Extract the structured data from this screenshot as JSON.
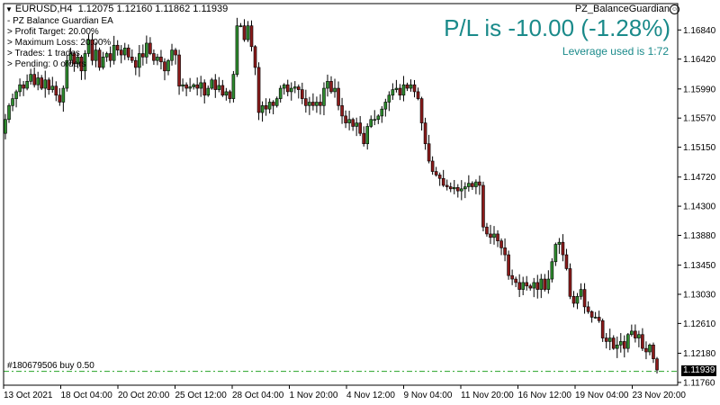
{
  "header": {
    "symbol": "EURUSD,H4",
    "ohlc": "1.12075 1.12160 1.11862 1.11939",
    "ea_name": "PZ_BalanceGuardian"
  },
  "ea_info": [
    "- PZ Balance Guardian EA",
    "> Profit Target: 20.00%",
    "> Maximum Loss: 20.00%",
    "> Trades: 1 trades",
    "> Pending: 0 orders"
  ],
  "pl_text": "P/L is -10.00 (-1.28%)",
  "leverage_text": "Leverage used is 1:72",
  "order": {
    "label": "#180679506 buy 0.50",
    "price": 1.1192
  },
  "current_price": "1.11939",
  "colors": {
    "bull": "#2e8b2e",
    "bear": "#8b1a1a",
    "wick": "#000000",
    "accent": "#1a8a8a",
    "order_line": "#28a428"
  },
  "chart_data": {
    "type": "candlestick",
    "y_ticks": [
      "1.16840",
      "1.16420",
      "1.15990",
      "1.15570",
      "1.15150",
      "1.14720",
      "1.14300",
      "1.13880",
      "1.13450",
      "1.13030",
      "1.12610",
      "1.12180",
      "1.11760"
    ],
    "x_ticks": [
      "13 Oct 2021",
      "18 Oct 04:00",
      "20 Oct 20:00",
      "25 Oct 12:00",
      "28 Oct 04:00",
      "1 Nov 20:00",
      "4 Nov 12:00",
      "9 Nov 04:00",
      "11 Nov 20:00",
      "16 Nov 12:00",
      "19 Nov 04:00",
      "23 Nov 20:00"
    ],
    "ylim": [
      1.1172,
      1.1722
    ],
    "close_path": [
      1.1555,
      1.1575,
      1.1585,
      1.1595,
      1.1605,
      1.16,
      1.161,
      1.162,
      1.1605,
      1.1615,
      1.16,
      1.1612,
      1.1598,
      1.1603,
      1.159,
      1.158,
      1.16,
      1.164,
      1.165,
      1.1635,
      1.1645,
      1.1625,
      1.165,
      1.167,
      1.164,
      1.1655,
      1.163,
      1.1645,
      1.165,
      1.164,
      1.1662,
      1.1655,
      1.1648,
      1.1658,
      1.1645,
      1.164,
      1.163,
      1.165,
      1.1645,
      1.1665,
      1.165,
      1.164,
      1.1645,
      1.1638,
      1.1625,
      1.164,
      1.1655,
      1.1648,
      1.1603,
      1.1605,
      1.16,
      1.1602,
      1.1605,
      1.16,
      1.1608,
      1.159,
      1.16,
      1.1612,
      1.1598,
      1.1604,
      1.159,
      1.1595,
      1.1585,
      1.162,
      1.169,
      1.169,
      1.167,
      1.169,
      1.166,
      1.163,
      1.1565,
      1.1575,
      1.157,
      1.158,
      1.1575,
      1.1585,
      1.16,
      1.1605,
      1.1595,
      1.16,
      1.1602,
      1.1598,
      1.1585,
      1.1575,
      1.158,
      1.1575,
      1.158,
      1.1575,
      1.16,
      1.161,
      1.1595,
      1.16,
      1.1575,
      1.156,
      1.155,
      1.1555,
      1.1545,
      1.155,
      1.1535,
      1.152,
      1.1545,
      1.1555,
      1.1555,
      1.156,
      1.157,
      1.158,
      1.159,
      1.1598,
      1.16,
      1.159,
      1.1605,
      1.16,
      1.1605,
      1.1595,
      1.1585,
      1.155,
      1.152,
      1.1495,
      1.148,
      1.1475,
      1.147,
      1.146,
      1.1458,
      1.1455,
      1.1457,
      1.1452,
      1.1455,
      1.1458,
      1.1463,
      1.1458,
      1.1465,
      1.146,
      1.14,
      1.139,
      1.1385,
      1.139,
      1.138,
      1.137,
      1.136,
      1.133,
      1.1325,
      1.132,
      1.131,
      1.132,
      1.1315,
      1.1312,
      1.132,
      1.131,
      1.1325,
      1.131,
      1.1325,
      1.135,
      1.1375,
      1.1378,
      1.136,
      1.134,
      1.13,
      1.129,
      1.13,
      1.131,
      1.1285,
      1.1278,
      1.127,
      1.127,
      1.1265,
      1.124,
      1.1235,
      1.124,
      1.1225,
      1.123,
      1.1235,
      1.1225,
      1.1245,
      1.125,
      1.124,
      1.1245,
      1.1225,
      1.122,
      1.123,
      1.121,
      1.1194
    ]
  }
}
